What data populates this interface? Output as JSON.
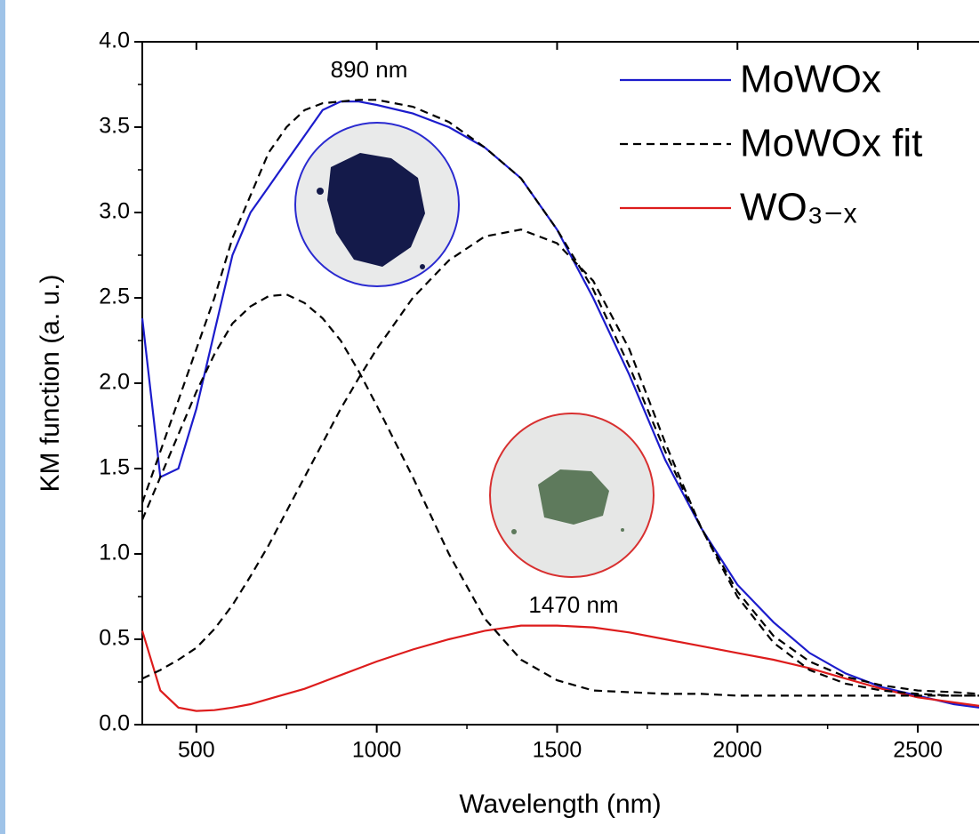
{
  "chart_data": {
    "type": "line",
    "x_label": "Wavelength (nm)",
    "y_label": "KM function (a. u.)",
    "annotations": [
      "890 nm",
      "1470 nm"
    ],
    "x": [
      350,
      400,
      450,
      500,
      550,
      600,
      650,
      700,
      750,
      800,
      850,
      900,
      950,
      1000,
      1100,
      1200,
      1300,
      1400,
      1500,
      1600,
      1700,
      1800,
      1900,
      2000,
      2100,
      2200,
      2300,
      2400,
      2500,
      2600,
      2670
    ],
    "series": [
      {
        "name": "MoWOx",
        "color": "#1c1ccc",
        "dash": false,
        "values": [
          2.38,
          1.45,
          1.5,
          1.85,
          2.3,
          2.75,
          3.0,
          3.15,
          3.3,
          3.45,
          3.6,
          3.65,
          3.65,
          3.63,
          3.58,
          3.5,
          3.38,
          3.2,
          2.9,
          2.5,
          2.05,
          1.55,
          1.15,
          0.82,
          0.6,
          0.42,
          0.3,
          0.22,
          0.17,
          0.12,
          0.1
        ]
      },
      {
        "name": "MoWOx fit",
        "color": "#000000",
        "dash": true,
        "values": [
          1.3,
          1.6,
          1.9,
          2.2,
          2.5,
          2.85,
          3.1,
          3.35,
          3.5,
          3.6,
          3.64,
          3.65,
          3.66,
          3.66,
          3.62,
          3.53,
          3.38,
          3.2,
          2.9,
          2.55,
          2.1,
          1.6,
          1.15,
          0.78,
          0.52,
          0.37,
          0.28,
          0.23,
          0.2,
          0.19,
          0.18
        ]
      },
      {
        "name": "WO₃₋ₓ",
        "color": "#dd1c1c",
        "dash": false,
        "values": [
          0.55,
          0.2,
          0.1,
          0.08,
          0.085,
          0.1,
          0.12,
          0.15,
          0.18,
          0.21,
          0.25,
          0.29,
          0.33,
          0.37,
          0.44,
          0.5,
          0.55,
          0.58,
          0.58,
          0.57,
          0.54,
          0.5,
          0.46,
          0.42,
          0.38,
          0.33,
          0.27,
          0.21,
          0.16,
          0.13,
          0.11
        ]
      },
      {
        "color": "#000000",
        "dash": true,
        "values": [
          1.2,
          1.45,
          1.7,
          1.95,
          2.17,
          2.35,
          2.45,
          2.51,
          2.52,
          2.47,
          2.38,
          2.25,
          2.07,
          1.87,
          1.45,
          1.0,
          0.62,
          0.38,
          0.26,
          0.2,
          0.19,
          0.18,
          0.18,
          0.17,
          0.17,
          0.17,
          0.17,
          0.17,
          0.17,
          0.17,
          0.17
        ]
      },
      {
        "color": "#000000",
        "dash": true,
        "values": [
          0.27,
          0.32,
          0.38,
          0.45,
          0.56,
          0.7,
          0.87,
          1.05,
          1.25,
          1.45,
          1.65,
          1.85,
          2.03,
          2.2,
          2.5,
          2.72,
          2.86,
          2.9,
          2.82,
          2.6,
          2.2,
          1.65,
          1.15,
          0.75,
          0.48,
          0.32,
          0.24,
          0.2,
          0.18,
          0.17,
          0.17
        ]
      }
    ],
    "xlim": [
      350,
      2670
    ],
    "ylim": [
      0,
      4
    ],
    "xticks": [
      500,
      1000,
      1500,
      2000,
      2500
    ],
    "yticks": [
      {
        "value": 0,
        "label": "0.0"
      },
      0.5,
      {
        "value": 1,
        "label": "1.0"
      },
      1.5,
      {
        "value": 2,
        "label": "2.0"
      },
      2.5,
      {
        "value": 3,
        "label": "3.0"
      },
      3.5,
      {
        "value": 4,
        "label": "4.0"
      }
    ],
    "legend": "upper right"
  }
}
